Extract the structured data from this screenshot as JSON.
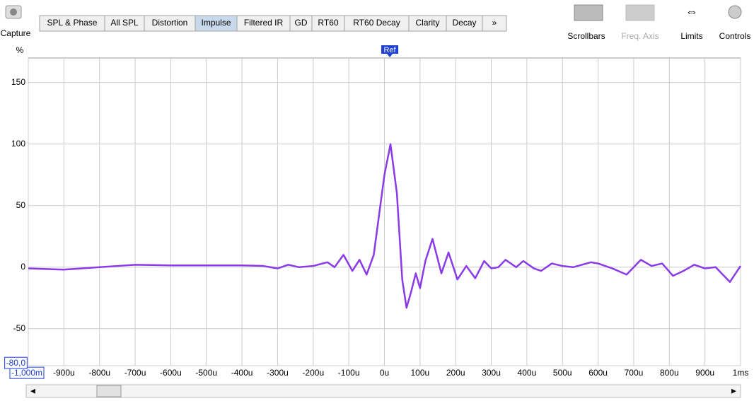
{
  "toolbar": {
    "capture": "Capture",
    "tabs": [
      "SPL & Phase",
      "All SPL",
      "Distortion",
      "Impulse",
      "Filtered IR",
      "GD",
      "RT60",
      "RT60 Decay",
      "Clarity",
      "Decay",
      "»"
    ],
    "active_tab": 3,
    "buttons": [
      "Scrollbars",
      "Freq. Axis",
      "Limits",
      "Controls"
    ]
  },
  "chart_data": {
    "type": "line",
    "y_label": "%",
    "marker": {
      "label": "Ref",
      "x": 15
    },
    "xlim": [
      -1000,
      1000
    ],
    "ylim": [
      -80,
      170
    ],
    "grid": true,
    "xticks": [
      {
        "value": -1000,
        "label": "-1,000m"
      },
      {
        "value": -900,
        "label": "-900u"
      },
      {
        "value": -800,
        "label": "-800u"
      },
      {
        "value": -700,
        "label": "-700u"
      },
      {
        "value": -600,
        "label": "-600u"
      },
      {
        "value": -500,
        "label": "-500u"
      },
      {
        "value": -400,
        "label": "-400u"
      },
      {
        "value": -300,
        "label": "-300u"
      },
      {
        "value": -200,
        "label": "-200u"
      },
      {
        "value": -100,
        "label": "-100u"
      },
      {
        "value": 0,
        "label": "0u"
      },
      {
        "value": 100,
        "label": "100u"
      },
      {
        "value": 200,
        "label": "200u"
      },
      {
        "value": 300,
        "label": "300u"
      },
      {
        "value": 400,
        "label": "400u"
      },
      {
        "value": 500,
        "label": "500u"
      },
      {
        "value": 600,
        "label": "600u"
      },
      {
        "value": 700,
        "label": "700u"
      },
      {
        "value": 800,
        "label": "800u"
      },
      {
        "value": 900,
        "label": "900u"
      },
      {
        "value": 1000,
        "label": "1ms"
      }
    ],
    "yticks": [
      {
        "value": -80,
        "label": "-80,0"
      },
      -50,
      0,
      50,
      100,
      150
    ],
    "x": [
      -1000,
      -900,
      -800,
      -750,
      -700,
      -600,
      -500,
      -400,
      -340,
      -300,
      -270,
      -240,
      -200,
      -160,
      -140,
      -115,
      -90,
      -70,
      -50,
      -30,
      0,
      17,
      35,
      50,
      62,
      75,
      88,
      100,
      115,
      135,
      160,
      180,
      205,
      230,
      255,
      280,
      300,
      320,
      340,
      370,
      390,
      420,
      440,
      470,
      500,
      530,
      580,
      600,
      640,
      680,
      720,
      750,
      780,
      810,
      840,
      870,
      900,
      930,
      970,
      1000
    ],
    "series": [
      {
        "color": "#8a3ae6",
        "values": [
          -1,
          -2,
          0,
          1,
          2,
          1.5,
          1.5,
          1.5,
          1,
          -1,
          2,
          0,
          1,
          4,
          0,
          10,
          -3,
          6,
          -6,
          10,
          75,
          100,
          60,
          -10,
          -33,
          -20,
          -5,
          -17,
          5,
          23,
          -5,
          12,
          -10,
          1,
          -9,
          5,
          -1,
          0,
          6,
          0,
          5,
          -1,
          -3,
          3,
          1,
          0,
          4,
          3,
          -1,
          -6,
          6,
          1,
          3,
          -7,
          -3,
          2,
          -1,
          0,
          -12,
          1
        ]
      }
    ]
  }
}
